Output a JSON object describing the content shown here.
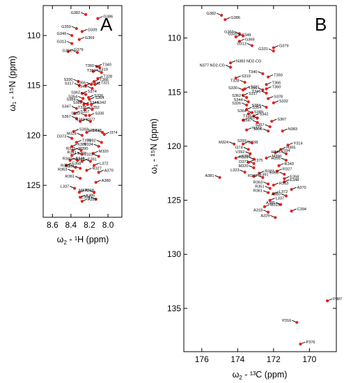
{
  "panels": [
    {
      "letter": "A",
      "xlabel_main": "ω",
      "xlabel_sub": "2",
      "xlabel_rest": " - ¹H  (ppm)",
      "ylabel": "ω₁ - ¹⁵N (ppm)"
    },
    {
      "letter": "B",
      "xlabel_main": "ω",
      "xlabel_sub": "2",
      "xlabel_rest": " - ¹³C  (ppm)",
      "ylabel": "ω₁ - ¹⁵N (ppm)"
    }
  ],
  "chart_data": [
    {
      "type": "scatter",
      "title": "A",
      "xlabel": "ω2 - 1H (ppm)",
      "ylabel": "ω1 - 15N (ppm)",
      "xlim": [
        8.7,
        7.85
      ],
      "ylim": [
        107.0,
        128.2
      ],
      "x_reversed": true,
      "xticks": [
        8.6,
        8.4,
        8.2,
        8.0
      ],
      "yticks": [
        110,
        115,
        120,
        125
      ],
      "points": [
        {
          "label": "G382",
          "x": 8.24,
          "y": 107.9
        },
        {
          "label": "G386",
          "x": 8.11,
          "y": 108.3
        },
        {
          "label": "G359",
          "x": 8.34,
          "y": 109.3
        },
        {
          "label": "G339",
          "x": 8.28,
          "y": 109.6
        },
        {
          "label": "G349",
          "x": 8.39,
          "y": 110.0
        },
        {
          "label": "G369",
          "x": 8.31,
          "y": 110.4
        },
        {
          "label": "G313",
          "x": 8.39,
          "y": 110.8
        },
        {
          "label": "G379",
          "x": 8.43,
          "y": 111.6
        },
        {
          "label": "G331",
          "x": 8.33,
          "y": 111.7
        },
        {
          "label": "T340",
          "x": 8.12,
          "y": 113.1
        },
        {
          "label": "T360",
          "x": 8.09,
          "y": 113.2
        },
        {
          "label": "S319",
          "x": 8.16,
          "y": 113.6
        },
        {
          "label": "T350",
          "x": 8.07,
          "y": 113.7
        },
        {
          "label": "T328",
          "x": 8.11,
          "y": 114.3
        },
        {
          "label": "S330",
          "x": 8.32,
          "y": 114.6
        },
        {
          "label": "T366",
          "x": 8.15,
          "y": 114.6
        },
        {
          "label": "S317",
          "x": 8.31,
          "y": 115.0
        },
        {
          "label": "S332",
          "x": 8.24,
          "y": 115.0
        },
        {
          "label": "T356",
          "x": 8.18,
          "y": 114.9
        },
        {
          "label": "T321",
          "x": 8.14,
          "y": 114.9
        },
        {
          "label": "T346",
          "x": 8.17,
          "y": 115.3
        },
        {
          "label": "S374",
          "x": 8.28,
          "y": 115.8
        },
        {
          "label": "S362",
          "x": 8.24,
          "y": 115.9
        },
        {
          "label": "S326",
          "x": 8.21,
          "y": 116.2
        },
        {
          "label": "S354",
          "x": 8.27,
          "y": 116.3
        },
        {
          "label": "S364",
          "x": 8.2,
          "y": 116.4
        },
        {
          "label": "S384",
          "x": 8.29,
          "y": 116.6
        },
        {
          "label": "S344",
          "x": 8.26,
          "y": 116.9
        },
        {
          "label": "S389",
          "x": 8.22,
          "y": 116.9
        },
        {
          "label": "S342",
          "x": 8.18,
          "y": 116.9
        },
        {
          "label": "S347",
          "x": 8.34,
          "y": 117.3
        },
        {
          "label": "S352",
          "x": 8.25,
          "y": 117.4
        },
        {
          "label": "T335",
          "x": 8.17,
          "y": 117.4
        },
        {
          "label": "S357",
          "x": 8.36,
          "y": 117.8
        },
        {
          "label": "S333",
          "x": 8.24,
          "y": 118.0
        },
        {
          "label": "S336",
          "x": 8.2,
          "y": 118.0
        },
        {
          "label": "S367",
          "x": 8.34,
          "y": 118.3
        },
        {
          "label": "N377",
          "x": 8.3,
          "y": 118.6
        },
        {
          "label": "N383",
          "x": 8.19,
          "y": 118.6
        },
        {
          "label": "S393",
          "x": 8.37,
          "y": 119.6
        },
        {
          "label": "M324",
          "x": 8.28,
          "y": 120.0
        },
        {
          "label": "D338",
          "x": 8.23,
          "y": 119.7
        },
        {
          "label": "Y314",
          "x": 8.06,
          "y": 119.7
        },
        {
          "label": "I374",
          "x": 8.04,
          "y": 119.9
        },
        {
          "label": "D373",
          "x": 8.39,
          "y": 120.3
        },
        {
          "label": "T375",
          "x": 8.34,
          "y": 120.7
        },
        {
          "label": "V392",
          "x": 8.07,
          "y": 120.7
        },
        {
          "label": "K388",
          "x": 8.39,
          "y": 121.1
        },
        {
          "label": "V334",
          "x": 8.1,
          "y": 121.1
        },
        {
          "label": "M390",
          "x": 8.38,
          "y": 121.5
        },
        {
          "label": "R325",
          "x": 8.29,
          "y": 121.5
        },
        {
          "label": "E368",
          "x": 8.39,
          "y": 122.0
        },
        {
          "label": "R341",
          "x": 8.28,
          "y": 121.9
        },
        {
          "label": "M320",
          "x": 8.16,
          "y": 121.8
        },
        {
          "label": "L323",
          "x": 8.1,
          "y": 122.1
        },
        {
          "label": "E348",
          "x": 8.41,
          "y": 122.5
        },
        {
          "label": "R343",
          "x": 8.33,
          "y": 122.5
        },
        {
          "label": "E391",
          "x": 8.28,
          "y": 122.6
        },
        {
          "label": "R322",
          "x": 8.19,
          "y": 122.6
        },
        {
          "label": "E358",
          "x": 8.45,
          "y": 123.0
        },
        {
          "label": "R353",
          "x": 8.35,
          "y": 123.2
        },
        {
          "label": "L372",
          "x": 8.15,
          "y": 123.0
        },
        {
          "label": "R351",
          "x": 8.3,
          "y": 123.3
        },
        {
          "label": "R327",
          "x": 8.23,
          "y": 123.5
        },
        {
          "label": "R363",
          "x": 8.38,
          "y": 123.6
        },
        {
          "label": "A370",
          "x": 8.1,
          "y": 123.7
        },
        {
          "label": "R361",
          "x": 8.3,
          "y": 124.3
        },
        {
          "label": "A380",
          "x": 8.13,
          "y": 124.7
        },
        {
          "label": "L337",
          "x": 8.36,
          "y": 125.3
        },
        {
          "label": "A318",
          "x": 8.31,
          "y": 125.7
        },
        {
          "label": "M315",
          "x": 8.15,
          "y": 125.7
        },
        {
          "label": "A385",
          "x": 8.3,
          "y": 126.2
        },
        {
          "label": "C394",
          "x": 8.13,
          "y": 126.4
        },
        {
          "label": "A329",
          "x": 8.28,
          "y": 126.6
        }
      ]
    },
    {
      "type": "scatter",
      "title": "B",
      "xlabel": "ω2 - 13C (ppm)",
      "ylabel": "ω1 - 15N (ppm)",
      "xlim": [
        177.0,
        168.5
      ],
      "ylim": [
        107.0,
        139.0
      ],
      "x_reversed": true,
      "xticks": [
        176,
        174,
        172,
        170
      ],
      "yticks": [
        110,
        115,
        120,
        125,
        130,
        135
      ],
      "points": [
        {
          "label": "G382",
          "x": 174.9,
          "y": 107.9
        },
        {
          "label": "G386",
          "x": 174.7,
          "y": 108.3
        },
        {
          "label": "G359",
          "x": 173.9,
          "y": 109.6
        },
        {
          "label": "G349",
          "x": 174.1,
          "y": 109.9
        },
        {
          "label": "G339",
          "x": 173.7,
          "y": 109.8
        },
        {
          "label": "G369",
          "x": 173.9,
          "y": 110.3
        },
        {
          "label": "G313",
          "x": 173.2,
          "y": 110.7
        },
        {
          "label": "G379",
          "x": 172.0,
          "y": 110.9
        },
        {
          "label": "G331",
          "x": 172.0,
          "y": 111.2
        },
        {
          "label": "N383 ND2-CG",
          "x": 174.4,
          "y": 112.3
        },
        {
          "label": "N377 ND2-CG",
          "x": 174.4,
          "y": 112.7
        },
        {
          "label": "S319",
          "x": 174.1,
          "y": 113.7
        },
        {
          "label": "T340",
          "x": 172.6,
          "y": 113.3
        },
        {
          "label": "T350",
          "x": 172.3,
          "y": 113.6
        },
        {
          "label": "T328",
          "x": 173.6,
          "y": 114.1
        },
        {
          "label": "T366",
          "x": 172.4,
          "y": 114.3
        },
        {
          "label": "S330",
          "x": 173.7,
          "y": 114.8
        },
        {
          "label": "T321",
          "x": 173.6,
          "y": 114.7
        },
        {
          "label": "T356",
          "x": 172.6,
          "y": 114.8
        },
        {
          "label": "T360",
          "x": 172.4,
          "y": 114.7
        },
        {
          "label": "T346",
          "x": 172.4,
          "y": 115.1
        },
        {
          "label": "S317",
          "x": 173.7,
          "y": 115.3
        },
        {
          "label": "S362",
          "x": 173.5,
          "y": 115.5
        },
        {
          "label": "S378",
          "x": 172.3,
          "y": 115.6
        },
        {
          "label": "S344",
          "x": 173.4,
          "y": 115.9
        },
        {
          "label": "S332",
          "x": 172.0,
          "y": 116.0
        },
        {
          "label": "S326",
          "x": 173.5,
          "y": 116.2
        },
        {
          "label": "S354",
          "x": 173.5,
          "y": 116.6
        },
        {
          "label": "S384",
          "x": 172.4,
          "y": 116.4
        },
        {
          "label": "S389",
          "x": 173.4,
          "y": 117.0
        },
        {
          "label": "S364",
          "x": 173.2,
          "y": 116.9
        },
        {
          "label": "S342",
          "x": 173.1,
          "y": 117.2
        },
        {
          "label": "T335",
          "x": 172.9,
          "y": 117.4
        },
        {
          "label": "H371",
          "x": 173.7,
          "y": 117.6
        },
        {
          "label": "S347",
          "x": 172.9,
          "y": 117.8
        },
        {
          "label": "S367",
          "x": 172.1,
          "y": 117.7
        },
        {
          "label": "S357",
          "x": 172.2,
          "y": 118.2
        },
        {
          "label": "N377",
          "x": 173.5,
          "y": 118.5
        },
        {
          "label": "S336",
          "x": 172.3,
          "y": 118.6
        },
        {
          "label": "N383",
          "x": 171.5,
          "y": 118.6
        },
        {
          "label": "M324",
          "x": 174.2,
          "y": 119.8
        },
        {
          "label": "D338",
          "x": 173.7,
          "y": 119.8
        },
        {
          "label": "S393",
          "x": 173.2,
          "y": 119.7
        },
        {
          "label": "Y314",
          "x": 171.2,
          "y": 119.9
        },
        {
          "label": "I374",
          "x": 173.4,
          "y": 120.3
        },
        {
          "label": "H365",
          "x": 171.6,
          "y": 120.3
        },
        {
          "label": "V392",
          "x": 173.3,
          "y": 120.7
        },
        {
          "label": "V334",
          "x": 171.9,
          "y": 120.6
        },
        {
          "label": "H345",
          "x": 171.3,
          "y": 120.7
        },
        {
          "label": "K388",
          "x": 174.1,
          "y": 121.1
        },
        {
          "label": "R325",
          "x": 173.1,
          "y": 121.2
        },
        {
          "label": "T375",
          "x": 173.4,
          "y": 121.5
        },
        {
          "label": "D373",
          "x": 173.1,
          "y": 121.6
        },
        {
          "label": "M390",
          "x": 172.4,
          "y": 121.1
        },
        {
          "label": "H355",
          "x": 171.3,
          "y": 121.3
        },
        {
          "label": "R343",
          "x": 171.7,
          "y": 121.8
        },
        {
          "label": "M320",
          "x": 173.1,
          "y": 122.0
        },
        {
          "label": "R327",
          "x": 171.8,
          "y": 122.3
        },
        {
          "label": "L323",
          "x": 173.6,
          "y": 122.4
        },
        {
          "label": "R322",
          "x": 172.8,
          "y": 122.5
        },
        {
          "label": "E368",
          "x": 171.4,
          "y": 122.6
        },
        {
          "label": "E391",
          "x": 173.1,
          "y": 122.8
        },
        {
          "label": "R341",
          "x": 172.6,
          "y": 122.9
        },
        {
          "label": "E358",
          "x": 171.4,
          "y": 123.0
        },
        {
          "label": "A381",
          "x": 175.0,
          "y": 122.9
        },
        {
          "label": "E348",
          "x": 171.4,
          "y": 123.3
        },
        {
          "label": "R363",
          "x": 172.3,
          "y": 123.5
        },
        {
          "label": "R353",
          "x": 172.0,
          "y": 123.6
        },
        {
          "label": "R351",
          "x": 172.2,
          "y": 123.9
        },
        {
          "label": "A370",
          "x": 171.0,
          "y": 124.0
        },
        {
          "label": "R361",
          "x": 172.3,
          "y": 124.3
        },
        {
          "label": "L372",
          "x": 172.0,
          "y": 124.4
        },
        {
          "label": "A380",
          "x": 171.3,
          "y": 124.6
        },
        {
          "label": "L337",
          "x": 172.2,
          "y": 125.0
        },
        {
          "label": "A385",
          "x": 171.6,
          "y": 125.4
        },
        {
          "label": "M315",
          "x": 172.5,
          "y": 125.6
        },
        {
          "label": "A318",
          "x": 172.3,
          "y": 126.1
        },
        {
          "label": "C394",
          "x": 171.0,
          "y": 126.0
        },
        {
          "label": "A329",
          "x": 171.9,
          "y": 126.6
        },
        {
          "label": "P387",
          "x": 169.0,
          "y": 134.3
        },
        {
          "label": "P316",
          "x": 170.7,
          "y": 136.3
        },
        {
          "label": "P376",
          "x": 170.5,
          "y": 138.3
        }
      ]
    }
  ]
}
